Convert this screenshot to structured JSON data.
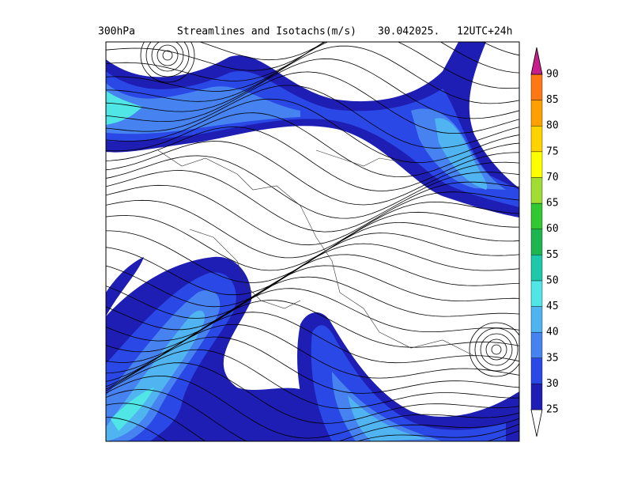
{
  "header": {
    "level": "300hPa",
    "title": "Streamlines and Isotachs(m/s)",
    "date": "30.042025.",
    "run": "12UTC+24h"
  },
  "colorbar": {
    "levels": [
      25,
      30,
      35,
      40,
      45,
      50,
      55,
      60,
      65,
      70,
      75,
      80,
      85,
      90
    ],
    "colors": [
      "#ffffff",
      "#1e1eb4",
      "#2a48e6",
      "#4682f0",
      "#50b4f0",
      "#50e6e6",
      "#1ec8aa",
      "#1eb450",
      "#32c832",
      "#a0dc32",
      "#ffff00",
      "#ffd200",
      "#ffa000",
      "#ff7814",
      "#c81e8c"
    ]
  }
}
